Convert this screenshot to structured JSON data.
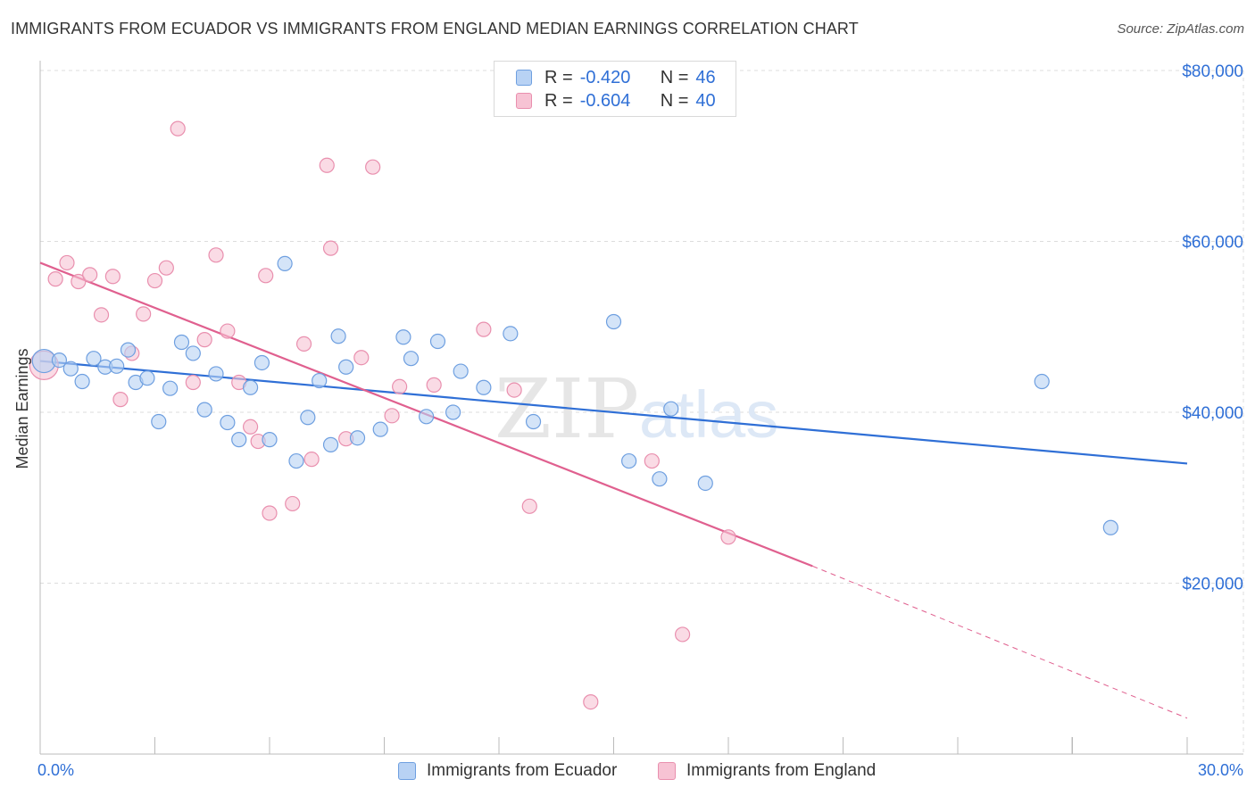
{
  "title": "IMMIGRANTS FROM ECUADOR VS IMMIGRANTS FROM ENGLAND MEDIAN EARNINGS CORRELATION CHART",
  "source": "Source: ZipAtlas.com",
  "watermark": {
    "zip": "ZIP",
    "atlas": "atlas"
  },
  "colors": {
    "series1_fill": "#b8d2f4",
    "series1_stroke": "#6e9fe0",
    "series1_line": "#2f6fd6",
    "series2_fill": "#f7c3d4",
    "series2_stroke": "#e98fae",
    "series2_line": "#e0608f",
    "tick_label": "#2f6fd6",
    "grid": "#dddddd"
  },
  "legend": {
    "rows": [
      {
        "r_label": "R =",
        "r_value": "-0.420",
        "n_label": "N =",
        "n_value": "46"
      },
      {
        "r_label": "R =",
        "r_value": "-0.604",
        "n_label": "N =",
        "n_value": "40"
      }
    ],
    "bottom": [
      "Immigrants from Ecuador",
      "Immigrants from England"
    ]
  },
  "chart_data": {
    "type": "scatter",
    "title": "IMMIGRANTS FROM ECUADOR VS IMMIGRANTS FROM ENGLAND MEDIAN EARNINGS CORRELATION CHART",
    "xlabel": "",
    "ylabel": "Median Earnings",
    "xlim": [
      0,
      30
    ],
    "ylim": [
      0,
      82000
    ],
    "x_tick_labels": [
      "0.0%",
      "30.0%"
    ],
    "y_ticks": [
      20000,
      40000,
      60000,
      80000
    ],
    "y_tick_labels": [
      "$20,000",
      "$40,000",
      "$60,000",
      "$80,000"
    ],
    "grid": true,
    "legend_position": "top-center",
    "series": [
      {
        "name": "Immigrants from Ecuador",
        "r": -0.42,
        "n": 46,
        "trend": {
          "x0": 0,
          "y0": 46000,
          "x1": 30,
          "y1": 34000
        },
        "points": [
          [
            0.1,
            46000
          ],
          [
            0.5,
            46100
          ],
          [
            0.8,
            45100
          ],
          [
            1.1,
            43600
          ],
          [
            1.4,
            46300
          ],
          [
            1.7,
            45300
          ],
          [
            2.0,
            45400
          ],
          [
            2.3,
            47300
          ],
          [
            2.5,
            43500
          ],
          [
            2.8,
            44000
          ],
          [
            3.1,
            38900
          ],
          [
            3.4,
            42800
          ],
          [
            3.7,
            48200
          ],
          [
            4.0,
            46900
          ],
          [
            4.3,
            40300
          ],
          [
            4.6,
            44500
          ],
          [
            4.9,
            38800
          ],
          [
            5.2,
            36800
          ],
          [
            5.5,
            42900
          ],
          [
            5.8,
            45800
          ],
          [
            6.0,
            36800
          ],
          [
            6.4,
            57400
          ],
          [
            6.7,
            34300
          ],
          [
            7.0,
            39400
          ],
          [
            7.3,
            43700
          ],
          [
            7.6,
            36200
          ],
          [
            7.8,
            48900
          ],
          [
            8.0,
            45300
          ],
          [
            8.3,
            37000
          ],
          [
            8.9,
            38000
          ],
          [
            9.5,
            48800
          ],
          [
            9.7,
            46300
          ],
          [
            10.1,
            39500
          ],
          [
            10.4,
            48300
          ],
          [
            10.8,
            40000
          ],
          [
            11.0,
            44800
          ],
          [
            11.6,
            42900
          ],
          [
            12.3,
            49200
          ],
          [
            12.9,
            38900
          ],
          [
            15.0,
            50600
          ],
          [
            15.4,
            34300
          ],
          [
            16.2,
            32200
          ],
          [
            16.5,
            40400
          ],
          [
            17.4,
            31700
          ],
          [
            26.2,
            43600
          ],
          [
            28.0,
            26500
          ]
        ]
      },
      {
        "name": "Immigrants from England",
        "r": -0.604,
        "n": 40,
        "trend": {
          "x0": 0,
          "y0": 57500,
          "x1": 20.2,
          "y1": 22000,
          "x_dash_end": 30,
          "y_dash_end": 4200
        },
        "points": [
          [
            0.1,
            45500
          ],
          [
            0.4,
            55600
          ],
          [
            0.7,
            57500
          ],
          [
            1.0,
            55300
          ],
          [
            1.3,
            56100
          ],
          [
            1.6,
            51400
          ],
          [
            1.9,
            55900
          ],
          [
            2.1,
            41500
          ],
          [
            2.4,
            46900
          ],
          [
            2.7,
            51500
          ],
          [
            3.0,
            55400
          ],
          [
            3.3,
            56900
          ],
          [
            3.6,
            73200
          ],
          [
            4.0,
            43500
          ],
          [
            4.3,
            48500
          ],
          [
            4.6,
            58400
          ],
          [
            4.9,
            49500
          ],
          [
            5.2,
            43500
          ],
          [
            5.5,
            38300
          ],
          [
            5.7,
            36600
          ],
          [
            5.9,
            56000
          ],
          [
            6.0,
            28200
          ],
          [
            6.6,
            29300
          ],
          [
            6.9,
            48000
          ],
          [
            7.1,
            34500
          ],
          [
            7.5,
            68900
          ],
          [
            7.6,
            59200
          ],
          [
            8.0,
            36900
          ],
          [
            8.4,
            46400
          ],
          [
            8.7,
            68700
          ],
          [
            9.2,
            39600
          ],
          [
            9.4,
            43000
          ],
          [
            10.3,
            43200
          ],
          [
            11.6,
            49700
          ],
          [
            12.4,
            42600
          ],
          [
            12.8,
            29000
          ],
          [
            16.0,
            34300
          ],
          [
            16.8,
            14000
          ],
          [
            18.0,
            25400
          ],
          [
            14.4,
            6100
          ]
        ]
      }
    ]
  }
}
